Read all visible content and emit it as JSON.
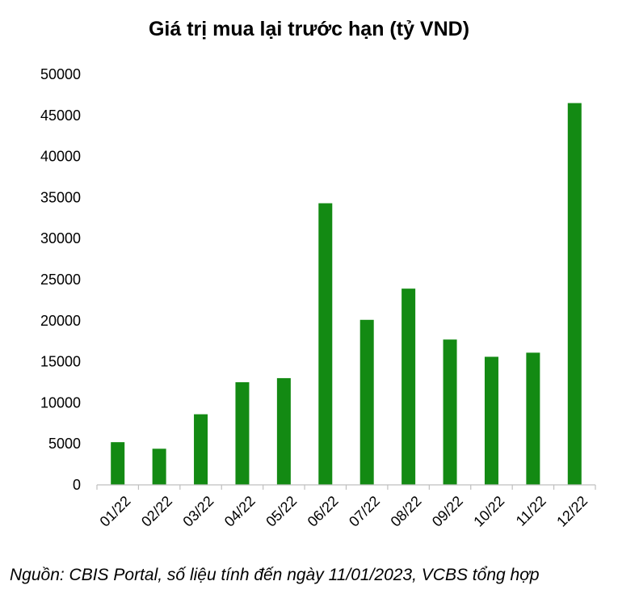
{
  "chart_data": {
    "type": "bar",
    "title": "Giá trị mua lại trước hạn (tỷ VND)",
    "categories": [
      "01/22",
      "02/22",
      "03/22",
      "04/22",
      "05/22",
      "06/22",
      "07/22",
      "08/22",
      "09/22",
      "10/22",
      "11/22",
      "12/22"
    ],
    "values": [
      5200,
      4400,
      8600,
      12500,
      13000,
      34300,
      20100,
      23900,
      17700,
      15600,
      16100,
      46500
    ],
    "yticks": [
      "0",
      "5000",
      "10000",
      "15000",
      "20000",
      "25000",
      "30000",
      "35000",
      "40000",
      "45000",
      "50000"
    ],
    "ylim": [
      0,
      50000
    ],
    "xlabel": "",
    "ylabel": "",
    "bar_color": "#138A13",
    "grid": false,
    "legend": "none"
  },
  "source_note": "Nguồn: CBIS Portal, số liệu tính đến ngày 11/01/2023, VCBS tổng hợp"
}
